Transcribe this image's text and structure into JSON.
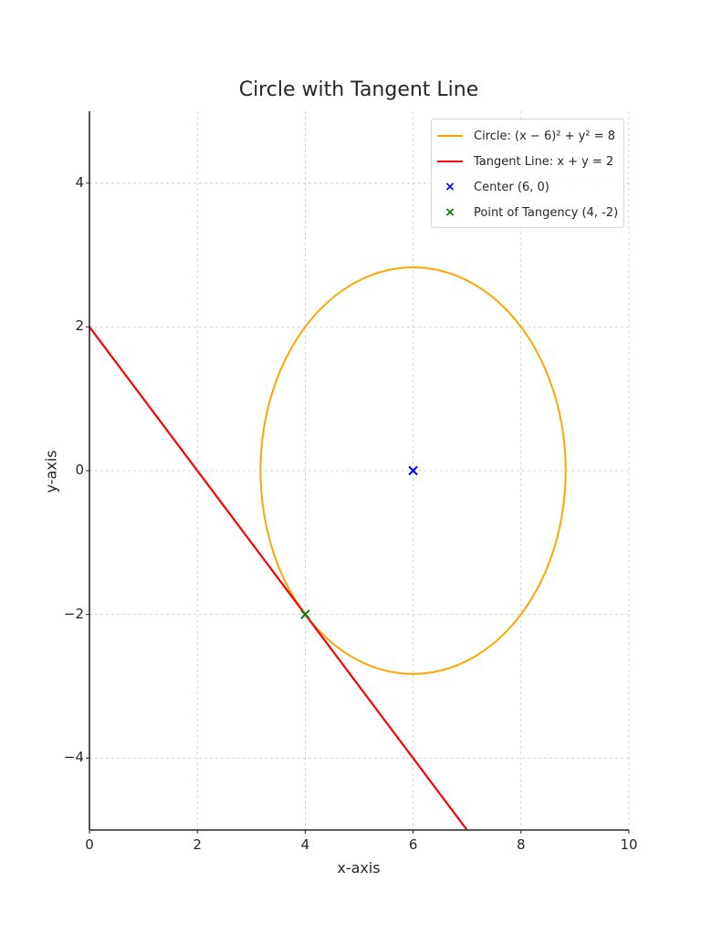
{
  "chart_data": {
    "type": "line",
    "title": "Circle with Tangent Line",
    "xlabel": "x-axis",
    "ylabel": "y-axis",
    "xlim": [
      0,
      10
    ],
    "ylim": [
      -5,
      5
    ],
    "xticks": [
      0,
      2,
      4,
      6,
      8,
      10
    ],
    "yticks": [
      -4,
      -2,
      0,
      2,
      4
    ],
    "xtick_labels": [
      "0",
      "2",
      "4",
      "6",
      "8",
      "10"
    ],
    "ytick_labels": [
      "−4",
      "−2",
      "0",
      "2",
      "4"
    ],
    "grid": true,
    "legend_position": "upper right",
    "series": [
      {
        "name": "Circle: (x − 6)² + y² = 8",
        "type": "circle",
        "center": [
          6,
          0
        ],
        "radius": 2.828,
        "color": "#FFA500"
      },
      {
        "name": "Tangent Line: x + y = 2",
        "type": "line",
        "x": [
          0,
          7
        ],
        "y": [
          2,
          -5
        ],
        "color": "#FF0000"
      },
      {
        "name": "Center (6, 0)",
        "type": "scatter",
        "marker": "x",
        "x": [
          6
        ],
        "y": [
          0
        ],
        "color": "#0000FF"
      },
      {
        "name": "Point of Tangency (4, -2)",
        "type": "scatter",
        "marker": "x",
        "x": [
          4
        ],
        "y": [
          -2
        ],
        "color": "#008000"
      }
    ]
  },
  "legend": {
    "items": [
      {
        "label": "Circle: (x − 6)² + y² = 8",
        "color": "#FFA500",
        "kind": "line"
      },
      {
        "label": "Tangent Line: x + y = 2",
        "color": "#FF0000",
        "kind": "line"
      },
      {
        "label": "Center (6, 0)",
        "color": "#0000FF",
        "kind": "marker",
        "glyph": "×"
      },
      {
        "label": "Point of Tangency (4, -2)",
        "color": "#008000",
        "kind": "marker",
        "glyph": "×"
      }
    ]
  }
}
